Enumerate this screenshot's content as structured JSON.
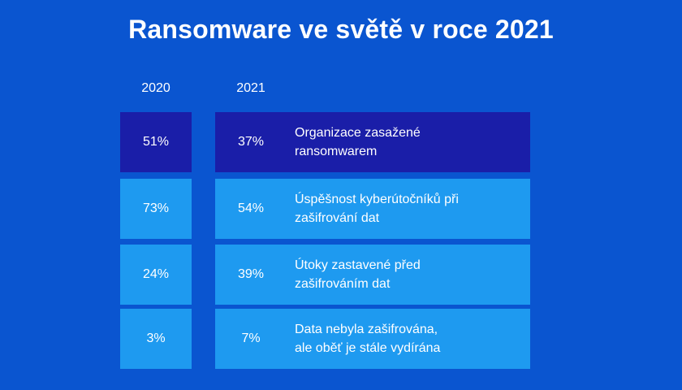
{
  "title": "Ransomware ve světě v roce 2021",
  "colors": {
    "background": "#0a55d0",
    "row_highlight": "#1a1ea8",
    "row_normal": "#1e9af0",
    "text": "#ffffff"
  },
  "chart_data": {
    "type": "table",
    "title": "Ransomware ve světě v roce 2021",
    "columns": [
      "2020",
      "2021"
    ],
    "rows": [
      {
        "label": "Organizace zasažené ransomwarem",
        "line1": "Organizace zasažené",
        "line2": "ransomwarem",
        "y2020": "51%",
        "y2021": "37%",
        "highlight": true
      },
      {
        "label": "Úspěšnost kyberútočníků při zašifrování dat",
        "line1": "Úspěšnost kyberútočníků při",
        "line2": "zašifrování dat",
        "y2020": "73%",
        "y2021": "54%",
        "highlight": false
      },
      {
        "label": "Útoky zastavené před zašifrováním dat",
        "line1": "Útoky zastavené před",
        "line2": "zašifrováním dat",
        "y2020": "24%",
        "y2021": "39%",
        "highlight": false
      },
      {
        "label": "Data nebyla zašifrována, ale oběť je stále vydírána",
        "line1": "Data nebyla zašifrována,",
        "line2": "ale oběť je stále vydírána",
        "y2020": "3%",
        "y2021": "7%",
        "highlight": false
      }
    ]
  }
}
